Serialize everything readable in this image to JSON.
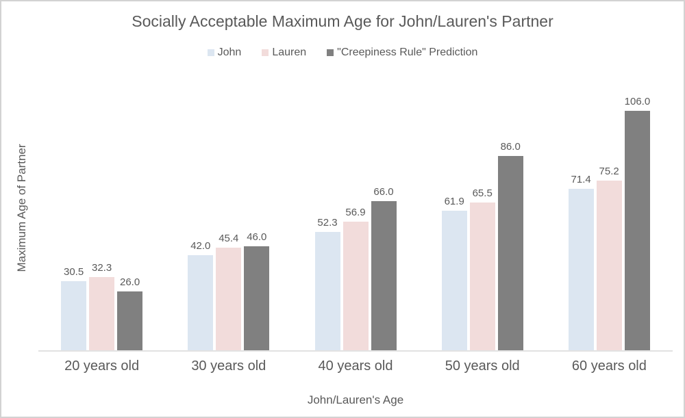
{
  "chart_data": {
    "type": "bar",
    "title": "Socially Acceptable Maximum Age for John/Lauren's Partner",
    "xlabel": "John/Lauren's Age",
    "ylabel": "Maximum Age of Partner",
    "categories": [
      "20 years old",
      "30 years old",
      "40 years old",
      "50 years old",
      "60 years old"
    ],
    "series": [
      {
        "name": "John",
        "color": "#dce6f1",
        "values": [
          30.5,
          42.0,
          52.3,
          61.9,
          71.4
        ]
      },
      {
        "name": "Lauren",
        "color": "#f2dcdb",
        "values": [
          32.3,
          45.4,
          56.9,
          65.5,
          75.2
        ]
      },
      {
        "name": "\"Creepiness Rule\" Prediction",
        "color": "#808080",
        "values": [
          26.0,
          46.0,
          66.0,
          86.0,
          106.0
        ]
      }
    ],
    "data_labels": [
      [
        "30.5",
        "42.0",
        "52.3",
        "61.9",
        "71.4"
      ],
      [
        "32.3",
        "45.4",
        "56.9",
        "65.5",
        "75.2"
      ],
      [
        "26.0",
        "46.0",
        "66.0",
        "86.0",
        "106.0"
      ]
    ],
    "ylim": [
      0,
      120
    ],
    "grid": false,
    "legend_position": "top",
    "show_data_labels": true
  },
  "style": {
    "text_color": "#595959",
    "axis_line_color": "#e2e2e2",
    "frame_border_color": "#d2d2d2",
    "background": "#ffffff"
  }
}
